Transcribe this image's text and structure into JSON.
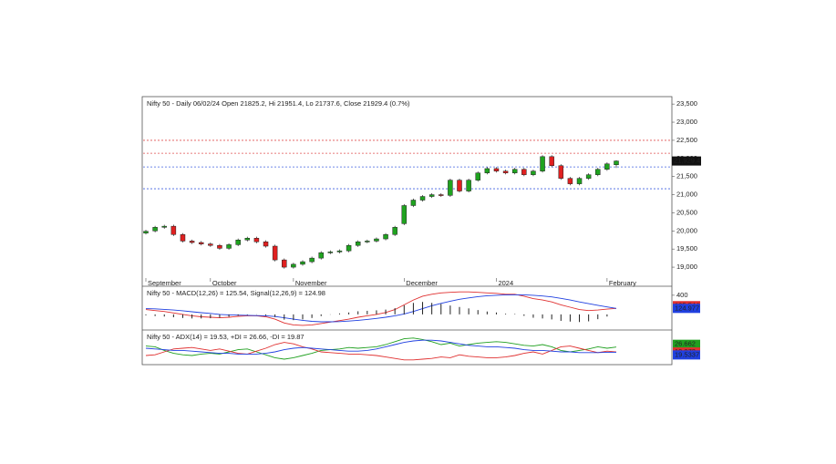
{
  "chart_data": [
    {
      "type": "candlestick",
      "title": "Nifty 50 - Daily 06/02/24 Open 21825.2, Hi 21951.4, Lo 21737.6, Close 21929.4 (0.7%)",
      "categories": [
        "September",
        null,
        null,
        null,
        null,
        null,
        null,
        "October",
        null,
        null,
        null,
        null,
        null,
        null,
        null,
        null,
        "November",
        null,
        null,
        null,
        null,
        null,
        null,
        null,
        null,
        null,
        null,
        null,
        "December",
        null,
        null,
        null,
        null,
        null,
        null,
        null,
        null,
        null,
        "2024",
        null,
        null,
        null,
        null,
        null,
        null,
        null,
        null,
        null,
        null,
        null,
        "February",
        null
      ],
      "open": [
        19940,
        20000,
        20100,
        20130,
        19900,
        19720,
        19680,
        19640,
        19600,
        19520,
        19620,
        19750,
        19800,
        19700,
        19580,
        19200,
        19000,
        19080,
        19150,
        19250,
        19400,
        19420,
        19450,
        19600,
        19700,
        19720,
        19780,
        19900,
        20200,
        20700,
        20850,
        20950,
        21000,
        20980,
        21400,
        21100,
        21400,
        21600,
        21720,
        21650,
        21600,
        21700,
        21550,
        21650,
        22050,
        21800,
        21450,
        21300,
        21450,
        21550,
        21700,
        21825.2
      ],
      "high": [
        20030,
        20140,
        20170,
        20170,
        19940,
        19760,
        19720,
        19680,
        19640,
        19660,
        19790,
        19840,
        19840,
        19740,
        19620,
        19240,
        19120,
        19190,
        19290,
        19440,
        19460,
        19490,
        19640,
        19740,
        19760,
        19820,
        19940,
        20140,
        20740,
        20890,
        20990,
        21040,
        21040,
        21440,
        21440,
        21440,
        21640,
        21760,
        21760,
        21690,
        21740,
        21740,
        21690,
        22090,
        22090,
        21840,
        21490,
        21490,
        21590,
        21740,
        21890,
        21951.4
      ],
      "low": [
        19900,
        19960,
        20060,
        19860,
        19680,
        19640,
        19600,
        19560,
        19480,
        19480,
        19580,
        19710,
        19660,
        19540,
        19160,
        18960,
        18960,
        19040,
        19110,
        19210,
        19360,
        19380,
        19410,
        19560,
        19660,
        19680,
        19740,
        19860,
        20160,
        20660,
        20810,
        20910,
        20940,
        20940,
        21060,
        21060,
        21360,
        21560,
        21610,
        21560,
        21560,
        21510,
        21510,
        21610,
        21760,
        21410,
        21260,
        21260,
        21410,
        21510,
        21660,
        21737.6
      ],
      "close": [
        19990,
        20100,
        20130,
        19900,
        19720,
        19680,
        19640,
        19600,
        19520,
        19620,
        19750,
        19800,
        19700,
        19580,
        19200,
        19000,
        19080,
        19150,
        19250,
        19400,
        19420,
        19450,
        19600,
        19700,
        19720,
        19780,
        19900,
        20100,
        20700,
        20850,
        20950,
        21000,
        20980,
        21400,
        21100,
        21400,
        21600,
        21720,
        21650,
        21600,
        21700,
        21550,
        21650,
        22050,
        21800,
        21450,
        21300,
        21450,
        21550,
        21700,
        21850,
        21929.4
      ],
      "up_color": "#1fa31f",
      "down_color": "#e02020",
      "last_label": "21,929.4",
      "ylim": [
        18700,
        23680
      ],
      "yticks": [
        {
          "value": 19000,
          "label": "19,000"
        },
        {
          "value": 19500,
          "label": "19,500"
        },
        {
          "value": 20000,
          "label": "20,000"
        },
        {
          "value": 20500,
          "label": "20,500"
        },
        {
          "value": 21000,
          "label": "21,000"
        },
        {
          "value": 21500,
          "label": "21,500"
        },
        {
          "value": 22000,
          "label": "22,000"
        },
        {
          "value": 22500,
          "label": "22,500"
        },
        {
          "value": 23000,
          "label": "23,000"
        },
        {
          "value": 23500,
          "label": "23,500"
        }
      ],
      "levels": [
        {
          "value": 22500,
          "color": "#e05050"
        },
        {
          "value": 22143,
          "color": "#e05050"
        },
        {
          "value": 21766,
          "color": "#4060e0"
        },
        {
          "value": 21163,
          "color": "#4060e0"
        }
      ]
    },
    {
      "type": "macd",
      "title": "Nifty 50 - MACD(12,26) = 125.54, Signal(12,26,9) = 124.98",
      "ylim": [
        -250,
        550
      ],
      "yticks": [
        400
      ],
      "series": [
        {
          "color": "#e03030",
          "tag": "125.544",
          "values": [
            100,
            80,
            60,
            30,
            0,
            -30,
            -50,
            -60,
            -70,
            -60,
            -40,
            -30,
            -30,
            -50,
            -100,
            -180,
            -220,
            -230,
            -220,
            -190,
            -160,
            -130,
            -100,
            -60,
            -30,
            0,
            40,
            100,
            200,
            300,
            380,
            420,
            450,
            460,
            470,
            470,
            460,
            450,
            440,
            420,
            420,
            380,
            330,
            300,
            260,
            200,
            150,
            100,
            80,
            90,
            110,
            125.54
          ]
        },
        {
          "color": "#2040e0",
          "tag": "124.977",
          "values": [
            120,
            115,
            105,
            90,
            75,
            55,
            35,
            20,
            0,
            -10,
            -15,
            -20,
            -25,
            -30,
            -45,
            -70,
            -100,
            -125,
            -145,
            -155,
            -155,
            -150,
            -140,
            -125,
            -105,
            -85,
            -60,
            -30,
            10,
            60,
            120,
            180,
            230,
            275,
            315,
            345,
            370,
            390,
            400,
            405,
            410,
            410,
            400,
            385,
            365,
            335,
            300,
            260,
            225,
            190,
            155,
            124.98
          ]
        },
        {
          "color": "#202020",
          "style": "bar",
          "values": [
            -20,
            -35,
            -45,
            -60,
            -75,
            -85,
            -85,
            -80,
            -70,
            -50,
            -25,
            -10,
            -5,
            -20,
            -55,
            -110,
            -120,
            -105,
            -75,
            -35,
            -5,
            20,
            40,
            65,
            75,
            85,
            100,
            130,
            190,
            240,
            260,
            240,
            220,
            185,
            155,
            125,
            90,
            60,
            40,
            15,
            10,
            -30,
            -70,
            -85,
            -105,
            -135,
            -150,
            -160,
            -145,
            -100,
            -45,
            0.56
          ]
        }
      ]
    },
    {
      "type": "line",
      "title": "Nifty 50 - ADX(14) = 19.53, +DI = 26.66, -DI = 19.87",
      "ylim": [
        5,
        45
      ],
      "series": [
        {
          "color": "#20a020",
          "tag": "26.662",
          "values": [
            28,
            27,
            22,
            18,
            16,
            15,
            17,
            18,
            17,
            20,
            23,
            24,
            20,
            16,
            12,
            10,
            12,
            15,
            18,
            22,
            23,
            24,
            26,
            25,
            26,
            27,
            30,
            34,
            38,
            39,
            37,
            34,
            30,
            32,
            28,
            30,
            32,
            33,
            34,
            33,
            31,
            29,
            28,
            30,
            27,
            22,
            20,
            22,
            24,
            27,
            25,
            26.66
          ]
        },
        {
          "color": "#e03030",
          "tag": "19.872",
          "values": [
            15,
            16,
            20,
            24,
            25,
            26,
            24,
            22,
            24,
            21,
            18,
            17,
            21,
            25,
            30,
            33,
            31,
            27,
            24,
            20,
            19,
            18,
            17,
            17,
            16,
            15,
            13,
            11,
            9,
            9,
            10,
            11,
            13,
            12,
            16,
            14,
            13,
            12,
            12,
            13,
            15,
            18,
            20,
            17,
            22,
            27,
            28,
            25,
            22,
            19,
            21,
            19.87
          ]
        },
        {
          "color": "#2040e0",
          "tag": "19.5337",
          "values": [
            25,
            24,
            23,
            22,
            22,
            21,
            20,
            19,
            18,
            18,
            17,
            17,
            17,
            18,
            20,
            23,
            25,
            26,
            25,
            24,
            23,
            22,
            21,
            21,
            22,
            24,
            27,
            30,
            33,
            35,
            36,
            36,
            35,
            33,
            31,
            29,
            28,
            27,
            27,
            26,
            25,
            23,
            22,
            22,
            21,
            20,
            20,
            19,
            19,
            19,
            19.5,
            19.53
          ]
        }
      ]
    }
  ]
}
